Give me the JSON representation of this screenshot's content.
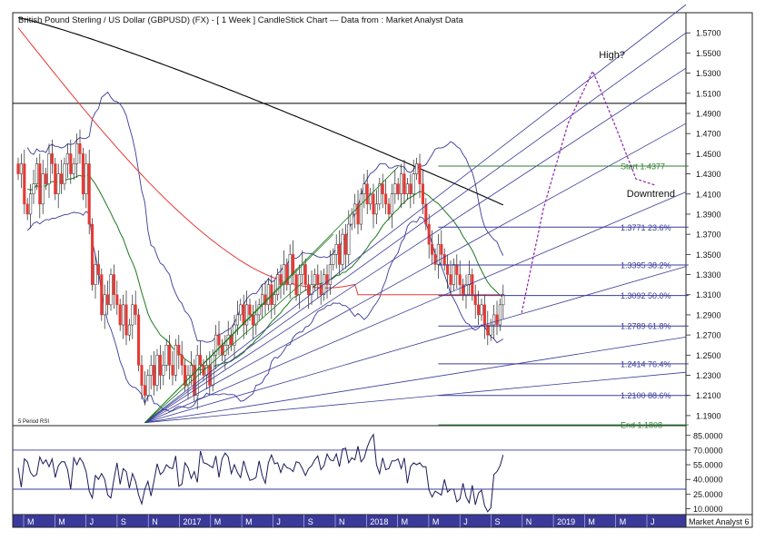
{
  "chart_data": {
    "type": "candlestick",
    "title": "British Pound Sterling / US Dollar (GBPUSD) (FX) -  [ 1 Week ] CandleStick Chart — Data from : Market Analyst Data",
    "price_axis": {
      "ylim": [
        1.18,
        1.59
      ],
      "ticks": [
        "1.5700",
        "1.5500",
        "1.5300",
        "1.5100",
        "1.4900",
        "1.4700",
        "1.4500",
        "1.4300",
        "1.4100",
        "1.3900",
        "1.3700",
        "1.3500",
        "1.3300",
        "1.3100",
        "1.2900",
        "1.2700",
        "1.2500",
        "1.2300",
        "1.2100",
        "1.1900"
      ]
    },
    "rsi_axis": {
      "label": "5 Period RSI",
      "ylim": [
        4,
        95
      ],
      "ticks": [
        "85.0000",
        "70.0000",
        "55.0000",
        "40.0000",
        "25.0000",
        "10.0000"
      ],
      "guides": [
        70,
        30
      ]
    },
    "time_axis": {
      "labels": [
        "M",
        "M",
        "J",
        "S",
        "N",
        "2017",
        "M",
        "M",
        "J",
        "S",
        "N",
        "2018",
        "M",
        "M",
        "J",
        "S",
        "N",
        "2019",
        "M",
        "M",
        "J"
      ],
      "corner_label": "Market Analyst 6"
    },
    "horizontal_line": 1.5,
    "fibonacci_levels": [
      {
        "label": "Start 1.4377",
        "value": 1.4377,
        "color": "#2e7d32"
      },
      {
        "label": "1.3771 23.6%",
        "value": 1.3771,
        "color": "#3a3a9a"
      },
      {
        "label": "1.3395 38.2%",
        "value": 1.3395,
        "color": "#3a3a9a"
      },
      {
        "label": "1.3092 50.0%",
        "value": 1.3092,
        "color": "#3a3a9a"
      },
      {
        "label": "1.2789 61.8%",
        "value": 1.2789,
        "color": "#3a3a9a"
      },
      {
        "label": "1.2414 76.4%",
        "value": 1.2414,
        "color": "#3a3a9a"
      },
      {
        "label": "1.2100 88.6%",
        "value": 1.21,
        "color": "#3a3a9a"
      },
      {
        "label": "End 1.1808",
        "value": 1.1808,
        "color": "#2e7d32"
      }
    ],
    "annotations": [
      {
        "text": "High?",
        "week": 188,
        "price": 1.545
      },
      {
        "text": "Downtrend",
        "week": 197,
        "price": 1.407
      }
    ],
    "projection_path": [
      [
        163,
        1.292
      ],
      [
        170,
        1.395
      ],
      [
        178,
        1.48
      ],
      [
        186,
        1.532
      ],
      [
        193,
        1.48
      ],
      [
        200,
        1.425
      ],
      [
        206,
        1.419
      ]
    ],
    "fan_origin": {
      "week": 41,
      "price": 1.183
    },
    "fan_end_prices": [
      1.598,
      1.57,
      1.535,
      1.48,
      1.412,
      1.338,
      1.268,
      1.233
    ],
    "green_fan_end_points": [
      [
        123,
        1.437
      ],
      [
        102,
        1.37
      ],
      [
        92,
        1.322
      ]
    ],
    "series_colors": {
      "up_candle": "#ffffff",
      "down_candle": "#e53935",
      "ma_long": "#000000",
      "ma_mid": "#e53935",
      "ma_short": "#1b7a1b",
      "bands": "#3a3a9a",
      "rsi": "#1a1a5a",
      "projection": "#8e24aa"
    },
    "close_prices": [
      1.43,
      1.44,
      1.4,
      1.39,
      1.41,
      1.42,
      1.44,
      1.4,
      1.43,
      1.42,
      1.45,
      1.44,
      1.41,
      1.43,
      1.42,
      1.44,
      1.45,
      1.43,
      1.44,
      1.46,
      1.45,
      1.41,
      1.44,
      1.38,
      1.32,
      1.34,
      1.33,
      1.29,
      1.31,
      1.3,
      1.33,
      1.31,
      1.3,
      1.28,
      1.3,
      1.27,
      1.28,
      1.3,
      1.29,
      1.24,
      1.22,
      1.21,
      1.23,
      1.24,
      1.22,
      1.25,
      1.23,
      1.24,
      1.26,
      1.24,
      1.23,
      1.26,
      1.25,
      1.24,
      1.22,
      1.23,
      1.24,
      1.21,
      1.25,
      1.24,
      1.23,
      1.24,
      1.22,
      1.25,
      1.27,
      1.26,
      1.25,
      1.26,
      1.27,
      1.26,
      1.28,
      1.29,
      1.3,
      1.28,
      1.3,
      1.29,
      1.28,
      1.29,
      1.3,
      1.31,
      1.3,
      1.32,
      1.3,
      1.31,
      1.33,
      1.32,
      1.34,
      1.32,
      1.35,
      1.33,
      1.31,
      1.33,
      1.34,
      1.32,
      1.31,
      1.32,
      1.33,
      1.32,
      1.31,
      1.33,
      1.32,
      1.34,
      1.35,
      1.36,
      1.34,
      1.37,
      1.35,
      1.38,
      1.39,
      1.4,
      1.38,
      1.41,
      1.42,
      1.4,
      1.41,
      1.39,
      1.4,
      1.42,
      1.41,
      1.4,
      1.39,
      1.41,
      1.42,
      1.41,
      1.43,
      1.41,
      1.42,
      1.41,
      1.43,
      1.44,
      1.42,
      1.4,
      1.38,
      1.36,
      1.35,
      1.34,
      1.36,
      1.35,
      1.34,
      1.33,
      1.32,
      1.34,
      1.33,
      1.32,
      1.31,
      1.32,
      1.33,
      1.31,
      1.3,
      1.29,
      1.3,
      1.28,
      1.27,
      1.28,
      1.29,
      1.28,
      1.3,
      1.31
    ],
    "rsi_values": [
      52,
      32,
      61,
      58,
      47,
      43,
      45,
      63,
      56,
      60,
      53,
      61,
      42,
      54,
      58,
      58,
      50,
      30,
      62,
      55,
      62,
      57,
      48,
      28,
      21,
      44,
      40,
      46,
      40,
      24,
      21,
      40,
      57,
      35,
      51,
      48,
      31,
      46,
      38,
      24,
      15,
      30,
      38,
      23,
      39,
      56,
      45,
      48,
      55,
      52,
      51,
      64,
      33,
      35,
      57,
      52,
      41,
      48,
      37,
      69,
      57,
      56,
      54,
      52,
      64,
      42,
      61,
      67,
      63,
      46,
      55,
      47,
      42,
      59,
      48,
      39,
      40,
      42,
      59,
      44,
      36,
      57,
      65,
      56,
      57,
      47,
      56,
      52,
      51,
      48,
      58,
      57,
      51,
      44,
      51,
      54,
      60,
      64,
      50,
      54,
      66,
      60,
      59,
      66,
      53,
      71,
      72,
      57,
      62,
      60,
      74,
      58,
      62,
      73,
      81,
      86,
      55,
      46,
      62,
      50,
      51,
      59,
      59,
      61,
      51,
      62,
      36,
      53,
      57,
      55,
      57,
      53,
      53,
      29,
      22,
      28,
      26,
      24,
      40,
      27,
      30,
      30,
      17,
      20,
      36,
      22,
      16,
      34,
      14,
      26,
      29,
      13,
      7,
      11,
      45,
      48,
      54,
      65
    ]
  }
}
